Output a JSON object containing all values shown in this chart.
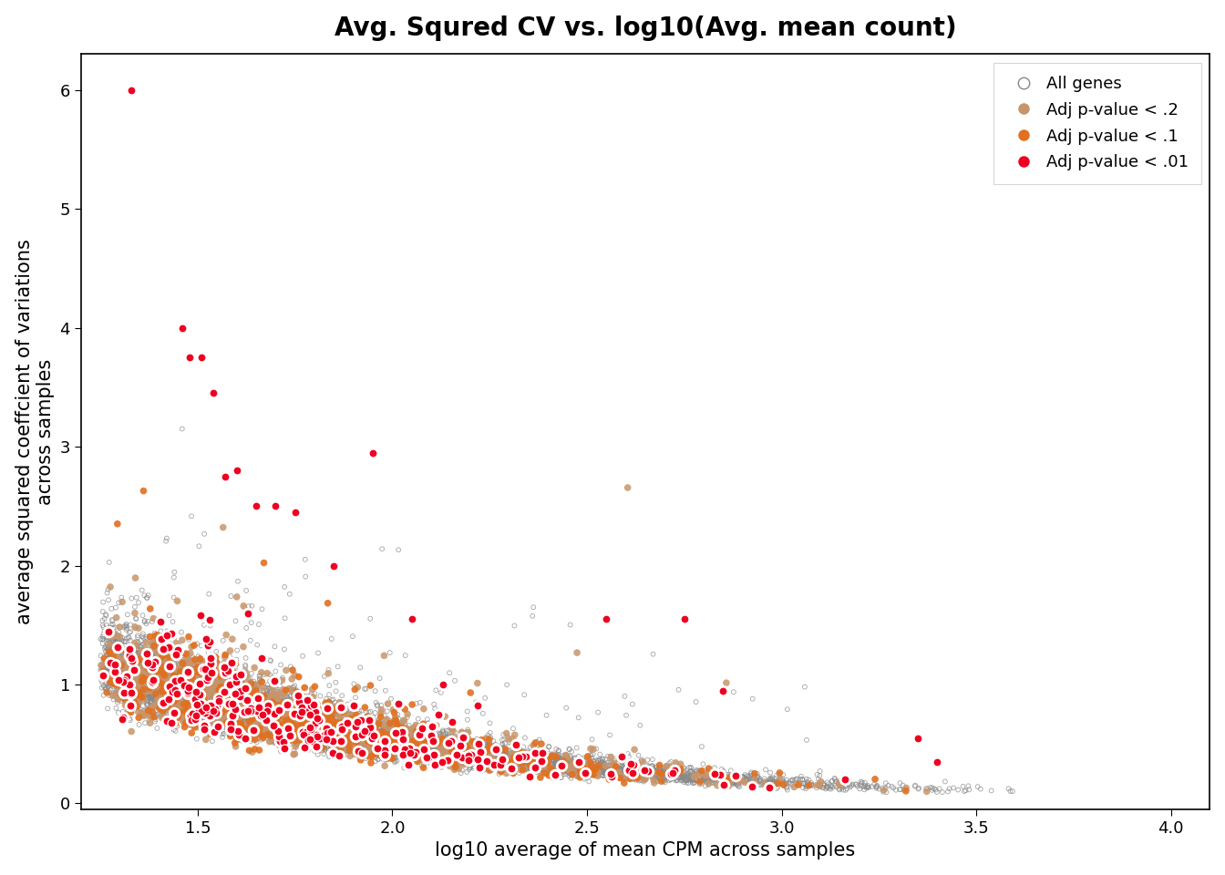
{
  "title": "Avg. Squred CV vs. log10(Avg. mean count)",
  "xlabel": "log10 average of mean CPM across samples",
  "ylabel": "average squared coeffcient of variations\nacross samples",
  "xlim": [
    1.2,
    4.1
  ],
  "ylim": [
    -0.05,
    6.3
  ],
  "xticks": [
    1.5,
    2.0,
    2.5,
    3.0,
    3.5,
    4.0
  ],
  "yticks": [
    0,
    1,
    2,
    3,
    4,
    5,
    6
  ],
  "legend_labels": [
    "All genes",
    "Adj p-value < .2",
    "Adj p-value < .1",
    "Adj p-value < .01"
  ],
  "all_genes_color": "#888888",
  "pval02_color": "#c8956a",
  "pval01_color": "#e07020",
  "pval001_color": "#ee0020",
  "background_color": "#ffffff",
  "title_fontsize": 20,
  "label_fontsize": 15,
  "tick_fontsize": 13,
  "legend_fontsize": 13,
  "seed": 42,
  "n_all": 9000,
  "n_p02": 1200,
  "n_p01": 600,
  "n_p001": 300
}
